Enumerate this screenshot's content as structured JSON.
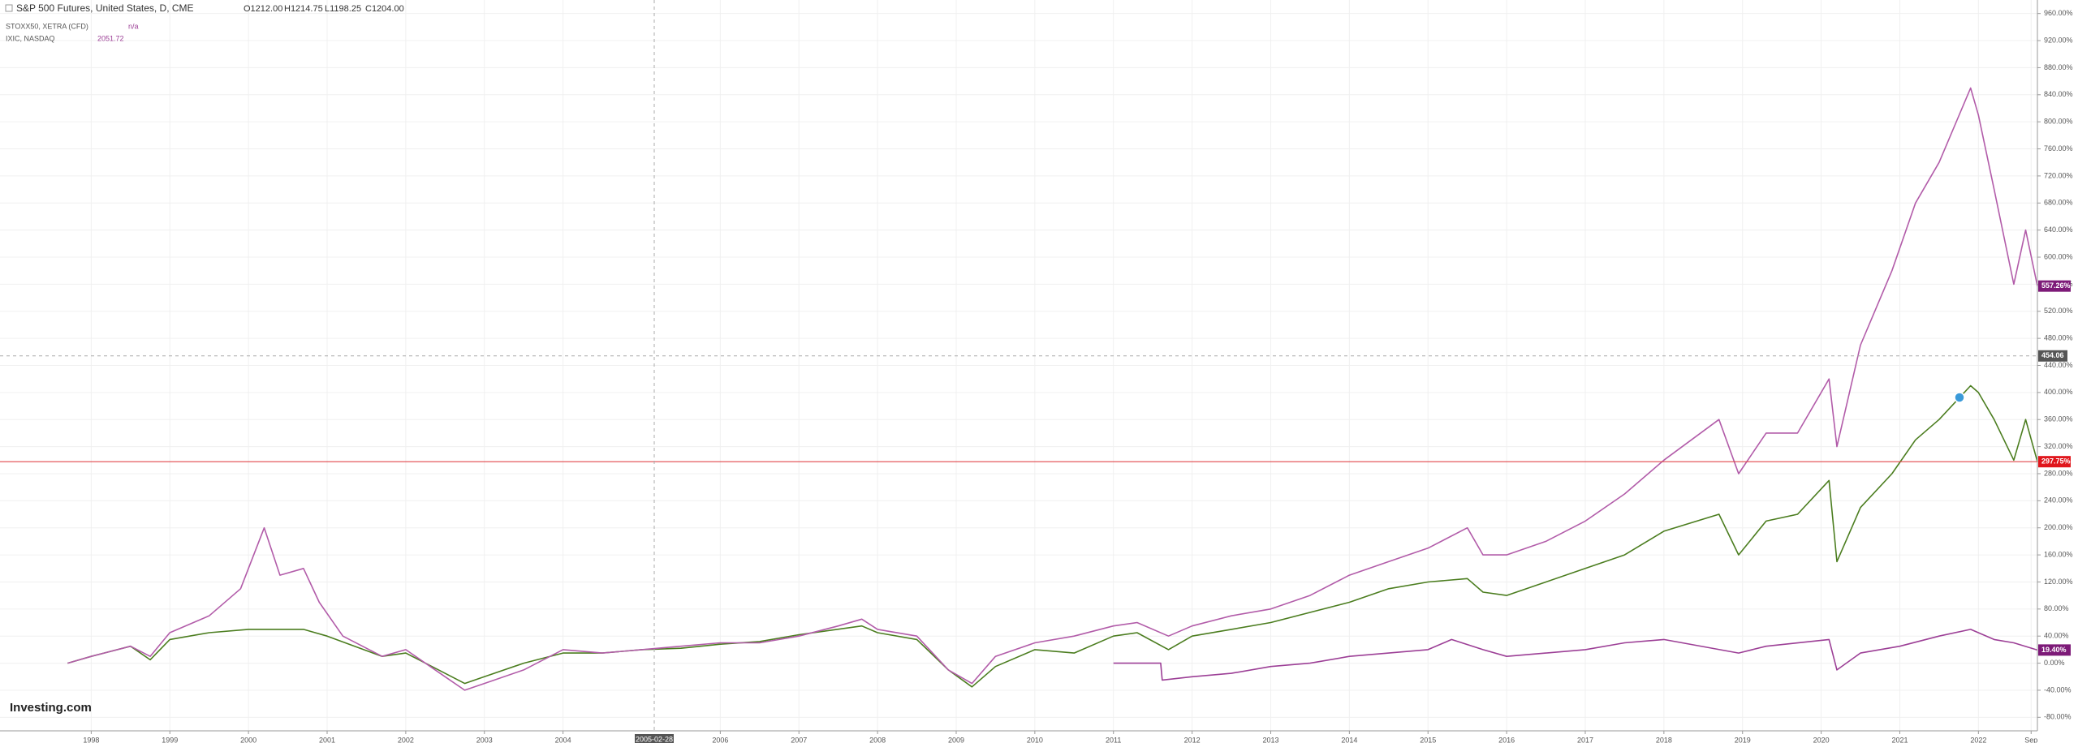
{
  "chart_data": {
    "type": "line",
    "header": {
      "ohlc": [
        "O1212.00",
        "H1214.75",
        "L1198.25",
        "C1204.00"
      ],
      "last_values": [
        "n/a",
        "2051.72"
      ]
    },
    "logo": "Investing.com",
    "xlim": [
      1996.84,
      2022.75
    ],
    "xticks": [
      {
        "value": 1998,
        "label": "1998"
      },
      {
        "value": 1999,
        "label": "1999"
      },
      {
        "value": 2000,
        "label": "2000"
      },
      {
        "value": 2001,
        "label": "2001"
      },
      {
        "value": 2002,
        "label": "2002"
      },
      {
        "value": 2003,
        "label": "2003"
      },
      {
        "value": 2004,
        "label": "2004"
      },
      {
        "value": 2006,
        "label": "2006"
      },
      {
        "value": 2007,
        "label": "2007"
      },
      {
        "value": 2008,
        "label": "2008"
      },
      {
        "value": 2009,
        "label": "2009"
      },
      {
        "value": 2010,
        "label": "2010"
      },
      {
        "value": 2011,
        "label": "2011"
      },
      {
        "value": 2012,
        "label": "2012"
      },
      {
        "value": 2013,
        "label": "2013"
      },
      {
        "value": 2014,
        "label": "2014"
      },
      {
        "value": 2015,
        "label": "2015"
      },
      {
        "value": 2016,
        "label": "2016"
      },
      {
        "value": 2017,
        "label": "2017"
      },
      {
        "value": 2018,
        "label": "2018"
      },
      {
        "value": 2019,
        "label": "2019"
      },
      {
        "value": 2020,
        "label": "2020"
      },
      {
        "value": 2021,
        "label": "2021"
      },
      {
        "value": 2022,
        "label": "2022"
      },
      {
        "value": 2022.67,
        "label": "Sep"
      }
    ],
    "ylim": [
      -100,
      980
    ],
    "yticks": [
      {
        "value": -80,
        "label": "-80.00%"
      },
      {
        "value": -40,
        "label": "-40.00%"
      },
      {
        "value": 0,
        "label": "0.00%"
      },
      {
        "value": 40,
        "label": "40.00%"
      },
      {
        "value": 80,
        "label": "80.00%"
      },
      {
        "value": 120,
        "label": "120.00%"
      },
      {
        "value": 160,
        "label": "160.00%"
      },
      {
        "value": 200,
        "label": "200.00%"
      },
      {
        "value": 240,
        "label": "240.00%"
      },
      {
        "value": 280,
        "label": "280.00%"
      },
      {
        "value": 320,
        "label": "320.00%"
      },
      {
        "value": 360,
        "label": "360.00%"
      },
      {
        "value": 400,
        "label": "400.00%"
      },
      {
        "value": 440,
        "label": "440.00%"
      },
      {
        "value": 480,
        "label": "480.00%"
      },
      {
        "value": 520,
        "label": "520.00%"
      },
      {
        "value": 560,
        "label": "560.00%"
      },
      {
        "value": 600,
        "label": "600.00%"
      },
      {
        "value": 640,
        "label": "640.00%"
      },
      {
        "value": 680,
        "label": "680.00%"
      },
      {
        "value": 720,
        "label": "720.00%"
      },
      {
        "value": 760,
        "label": "760.00%"
      },
      {
        "value": 800,
        "label": "800.00%"
      },
      {
        "value": 840,
        "label": "840.00%"
      },
      {
        "value": 880,
        "label": "880.00%"
      },
      {
        "value": 920,
        "label": "920.00%"
      },
      {
        "value": 960,
        "label": "960.00%"
      }
    ],
    "grid": true,
    "crosshair": {
      "x": {
        "value": 2005.16,
        "label": "2005-02-28"
      },
      "y": {
        "value": 454.06,
        "label": "454.06"
      }
    },
    "price_line": {
      "value": 297.75,
      "color": "#e0464a"
    },
    "series": [
      {
        "name": "S&P 500 Futures, United States, D, CME",
        "color": "#4b7d1f",
        "x": [
          1997.7,
          1998.0,
          1998.5,
          1998.75,
          1999.0,
          1999.5,
          2000.0,
          2000.7,
          2001.0,
          2001.7,
          2002.0,
          2002.5,
          2002.75,
          2003.0,
          2003.5,
          2004.0,
          2004.5,
          2005.0,
          2005.5,
          2006.0,
          2006.5,
          2007.0,
          2007.8,
          2008.0,
          2008.5,
          2008.9,
          2009.2,
          2009.5,
          2010.0,
          2010.5,
          2011.0,
          2011.3,
          2011.7,
          2012.0,
          2012.5,
          2013.0,
          2013.5,
          2014.0,
          2014.5,
          2015.0,
          2015.5,
          2015.7,
          2016.0,
          2016.5,
          2017.0,
          2017.5,
          2018.0,
          2018.7,
          2018.95,
          2019.3,
          2019.7,
          2020.1,
          2020.2,
          2020.5,
          2020.9,
          2021.2,
          2021.5,
          2021.9,
          2022.0,
          2022.2,
          2022.45,
          2022.6,
          2022.75
        ],
        "values": [
          0,
          10,
          25,
          5,
          35,
          45,
          50,
          50,
          40,
          10,
          15,
          -15,
          -30,
          -20,
          0,
          15,
          15,
          20,
          22,
          28,
          32,
          42,
          55,
          45,
          35,
          -10,
          -35,
          -5,
          20,
          15,
          40,
          45,
          20,
          40,
          50,
          60,
          75,
          90,
          110,
          120,
          125,
          105,
          100,
          120,
          140,
          160,
          195,
          220,
          160,
          210,
          220,
          270,
          150,
          230,
          280,
          330,
          360,
          410,
          400,
          360,
          300,
          360,
          297.75
        ],
        "end_label": {
          "value": 297.75,
          "label": "297.75%",
          "color": "#e0161c"
        }
      },
      {
        "name": "STOXX50, XETRA (CFD)",
        "color": "#9c3f96",
        "x": [
          2011.0,
          2011.6,
          2011.62,
          2012.0,
          2012.5,
          2013.0,
          2013.5,
          2014.0,
          2014.5,
          2015.0,
          2015.3,
          2015.7,
          2016.0,
          2016.5,
          2017.0,
          2017.5,
          2018.0,
          2018.95,
          2019.3,
          2020.1,
          2020.2,
          2020.5,
          2021.0,
          2021.5,
          2021.9,
          2022.2,
          2022.45,
          2022.75
        ],
        "values": [
          0,
          0,
          -25,
          -20,
          -15,
          -5,
          0,
          10,
          15,
          20,
          35,
          20,
          10,
          15,
          20,
          30,
          35,
          15,
          25,
          35,
          -10,
          15,
          25,
          40,
          50,
          35,
          30,
          19.4
        ],
        "end_label": {
          "value": 19.4,
          "label": "19.40%",
          "color": "#7d1a78"
        }
      },
      {
        "name": "IXIC, NASDAQ",
        "color": "#b25ca9",
        "x": [
          1997.7,
          1998.0,
          1998.5,
          1998.75,
          1999.0,
          1999.5,
          1999.9,
          2000.2,
          2000.4,
          2000.7,
          2000.9,
          2001.2,
          2001.7,
          2002.0,
          2002.5,
          2002.75,
          2003.0,
          2003.5,
          2004.0,
          2004.5,
          2005.0,
          2005.5,
          2006.0,
          2006.5,
          2007.0,
          2007.5,
          2007.8,
          2008.0,
          2008.5,
          2008.9,
          2009.2,
          2009.5,
          2010.0,
          2010.5,
          2011.0,
          2011.3,
          2011.7,
          2012.0,
          2012.5,
          2013.0,
          2013.5,
          2014.0,
          2014.5,
          2015.0,
          2015.5,
          2015.7,
          2016.0,
          2016.5,
          2017.0,
          2017.5,
          2018.0,
          2018.7,
          2018.95,
          2019.3,
          2019.7,
          2020.1,
          2020.2,
          2020.5,
          2020.9,
          2021.2,
          2021.5,
          2021.9,
          2022.0,
          2022.2,
          2022.45,
          2022.6,
          2022.75
        ],
        "values": [
          0,
          10,
          25,
          10,
          45,
          70,
          110,
          200,
          130,
          140,
          90,
          40,
          10,
          20,
          -20,
          -40,
          -30,
          -10,
          20,
          15,
          20,
          25,
          30,
          30,
          40,
          55,
          65,
          50,
          40,
          -10,
          -30,
          10,
          30,
          40,
          55,
          60,
          40,
          55,
          70,
          80,
          100,
          130,
          150,
          170,
          200,
          160,
          160,
          180,
          210,
          250,
          300,
          360,
          280,
          340,
          340,
          420,
          320,
          470,
          580,
          680,
          740,
          850,
          810,
          700,
          560,
          640,
          557.26
        ],
        "end_label": {
          "value": 557.26,
          "label": "557.26%",
          "color": "#7d1a78"
        }
      }
    ]
  }
}
